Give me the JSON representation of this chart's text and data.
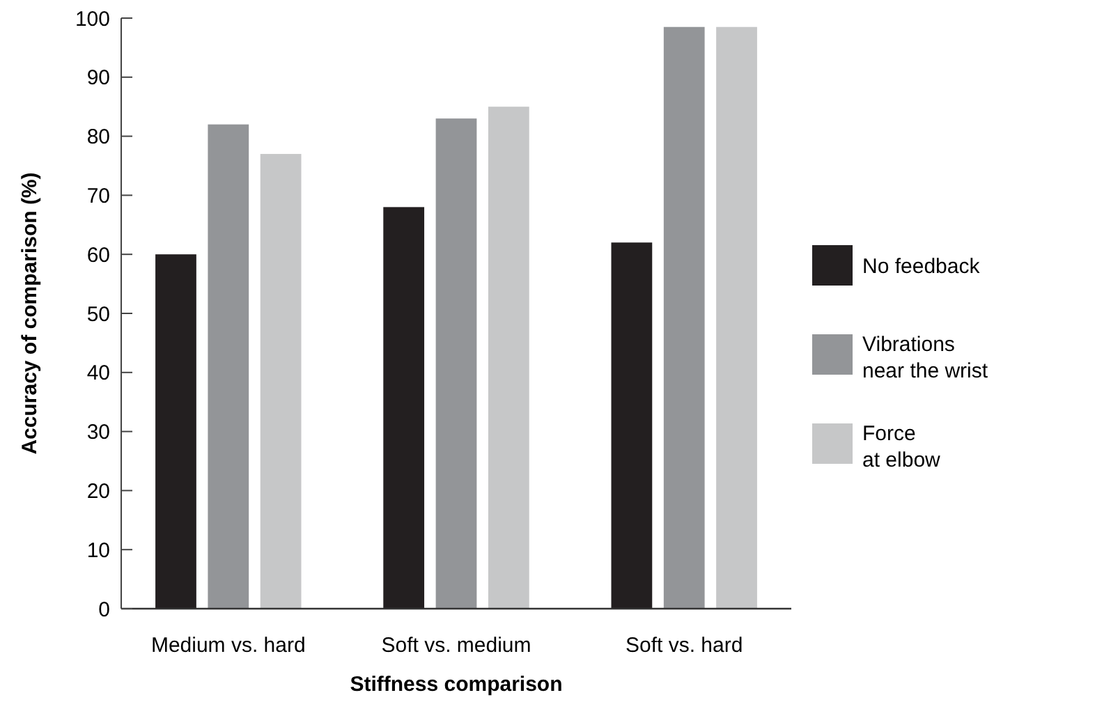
{
  "chart_data": {
    "type": "bar",
    "xlabel": "Stiffness comparison",
    "ylabel": "Accuracy of comparison (%)",
    "categories": [
      "Medium vs. hard",
      "Soft vs. medium",
      "Soft vs. hard"
    ],
    "series": [
      {
        "name": "No feedback",
        "color": "#231f20",
        "values": [
          60,
          68,
          62
        ]
      },
      {
        "name": "Vibrations near the wrist",
        "color": "#939598",
        "values": [
          82,
          83,
          98.5
        ]
      },
      {
        "name": "Force at elbow",
        "color": "#c6c7c8",
        "values": [
          77,
          85,
          98.5
        ]
      }
    ],
    "ylim": [
      0,
      100
    ],
    "yticks": [
      0,
      10,
      20,
      30,
      40,
      50,
      60,
      70,
      80,
      90,
      100
    ],
    "legend": "right"
  }
}
